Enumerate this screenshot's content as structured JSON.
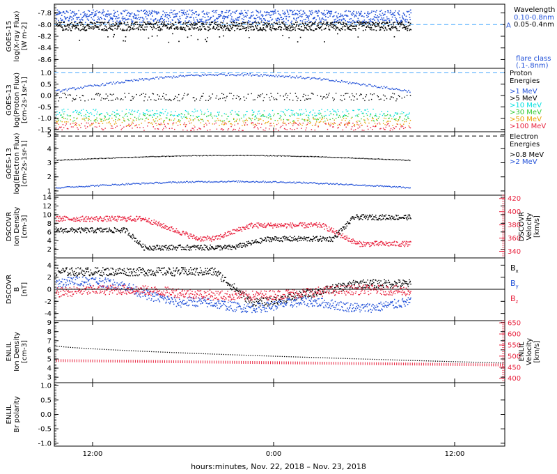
{
  "window": {
    "title": ""
  },
  "footer": {
    "xlabel": "hours:minutes, Nov. 22, 2018 – Nov. 23, 2018"
  },
  "colors": {
    "black": "#000000",
    "blue": "#1f4fd8",
    "cyan": "#00e0e0",
    "green": "#33cc33",
    "orange": "#e8a000",
    "red": "#e8203c",
    "dashed": "#44a7ff"
  },
  "chart_data": [
    {
      "id": "xray",
      "type": "scatter",
      "ylabel": [
        "GOES-15",
        "log(X-ray Flux)",
        "[W m-2]"
      ],
      "yticks": [
        -7.8,
        -8.0,
        -8.2,
        -8.4,
        -8.6
      ],
      "ylim": [
        -8.75,
        -7.65
      ],
      "legend_title": "Wavelength",
      "series": [
        {
          "name": "0.10-0.8nm",
          "color": "#1f4fd8",
          "level": -7.85
        },
        {
          "name": "0.05-0.4nm",
          "color": "#000000",
          "level": -8.02
        }
      ],
      "threshold": {
        "value": -8.0,
        "label": "A"
      },
      "extra_label": [
        "flare class",
        "(.1-.8nm)"
      ]
    },
    {
      "id": "proton",
      "type": "scatter",
      "ylabel": [
        "GOES-13",
        "log(Proton Flux)",
        "[cm-2s-1sr-1]"
      ],
      "yticks": [
        1.0,
        0.5,
        0.0,
        -0.5,
        -1.0,
        -1.5
      ],
      "ylim": [
        -1.6,
        1.2
      ],
      "legend_title": [
        "Proton",
        "Energies"
      ],
      "series": [
        {
          "name": ">1 MeV",
          "color": "#1f4fd8"
        },
        {
          "name": ">5 MeV",
          "color": "#000000"
        },
        {
          "name": ">10 MeV",
          "color": "#00e0e0"
        },
        {
          "name": ">30 MeV",
          "color": "#33cc33"
        },
        {
          "name": ">50 MeV",
          "color": "#e8a000"
        },
        {
          "name": ">100 MeV",
          "color": "#e8203c"
        }
      ],
      "threshold": {
        "value": 1.0
      }
    },
    {
      "id": "electron",
      "type": "line",
      "ylabel": [
        "GOES-13",
        "log(Electron Flux)",
        "[cm-2s-1sr-1]"
      ],
      "yticks": [
        5,
        4,
        3,
        2,
        1
      ],
      "ylim": [
        0.7,
        5.2
      ],
      "legend_title": [
        "Electron",
        "Energies"
      ],
      "series": [
        {
          "name": ">0.8 MeV",
          "color": "#000000"
        },
        {
          "name": ">2 MeV",
          "color": "#1f4fd8"
        }
      ],
      "threshold": {
        "value": 4.9
      }
    },
    {
      "id": "dscovr_density",
      "type": "scatter",
      "ylabel": [
        "DSCOVR",
        "Ion Density",
        "[cm-3]"
      ],
      "yticks": [
        14,
        12,
        10,
        8,
        6,
        4,
        2
      ],
      "ylim": [
        0,
        14.5
      ],
      "ylabel_right": [
        "DSCOVR",
        "Velocity",
        "[km/s]"
      ],
      "yticks_right": [
        420,
        400,
        380,
        360,
        340
      ],
      "ylim_right": [
        330,
        425
      ]
    },
    {
      "id": "dscovr_b",
      "type": "scatter",
      "ylabel": [
        "DSCOVR",
        "B",
        "[nT]"
      ],
      "yticks": [
        4,
        2,
        0,
        -2,
        -4
      ],
      "ylim": [
        -5.2,
        5.2
      ],
      "series": [
        {
          "name": "Bx",
          "color": "#000000"
        },
        {
          "name": "By",
          "color": "#1f4fd8"
        },
        {
          "name": "Bz",
          "color": "#e8203c"
        }
      ]
    },
    {
      "id": "enlil_density",
      "type": "line",
      "ylabel": [
        "ENLIL",
        "Ion Density",
        "[cm-3]"
      ],
      "yticks": [
        9,
        8,
        7,
        6,
        5,
        4,
        3
      ],
      "ylim": [
        2.4,
        9.2
      ],
      "ylabel_right": [
        "ENLIL",
        "Velocity",
        "[km/s]"
      ],
      "yticks_right": [
        650,
        600,
        550,
        500,
        450,
        400
      ],
      "ylim_right": [
        380,
        660
      ]
    },
    {
      "id": "enlil_polarity",
      "type": "line",
      "ylabel": [
        "ENLIL",
        "Br polarity"
      ],
      "yticks": [
        1.0,
        0.5,
        0.0,
        -0.5,
        -1.0
      ],
      "ylim": [
        -1.1,
        1.1
      ]
    }
  ],
  "xaxis": {
    "ticks": [
      "12:00",
      "0:00",
      "12:00"
    ]
  }
}
